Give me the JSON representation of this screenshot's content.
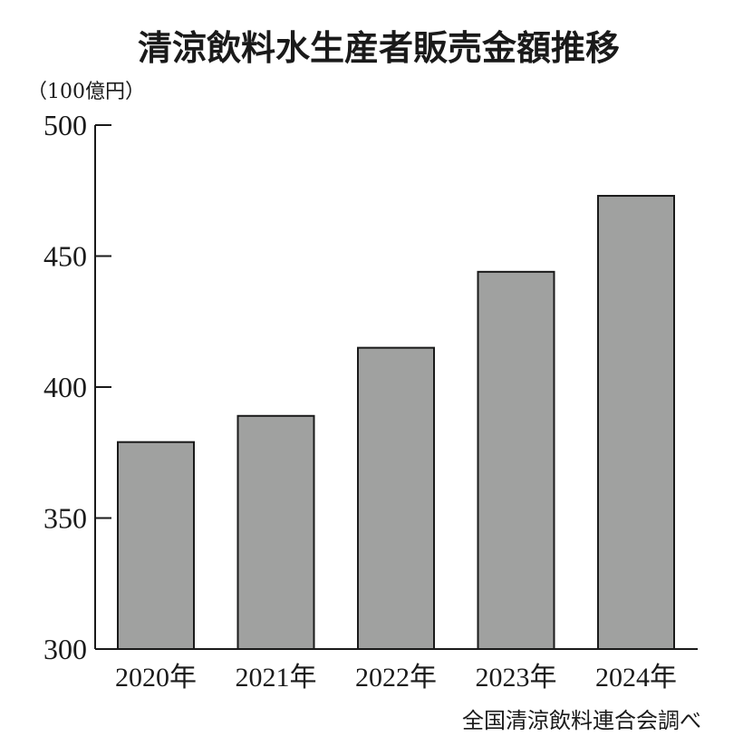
{
  "chart_data": {
    "type": "bar",
    "title": "清涼飲料水生産者販売金額推移",
    "unit": "（100億円）",
    "categories": [
      "2020年",
      "2021年",
      "2022年",
      "2023年",
      "2024年"
    ],
    "values": [
      379,
      389,
      415,
      444,
      473
    ],
    "ylim": [
      300,
      500
    ],
    "yticks": [
      "300",
      "350",
      "400",
      "450",
      "500"
    ],
    "grid": false,
    "legend": "none",
    "bar_color": "#a0a1a0",
    "source": "全国清涼飲料連合会調べ"
  }
}
